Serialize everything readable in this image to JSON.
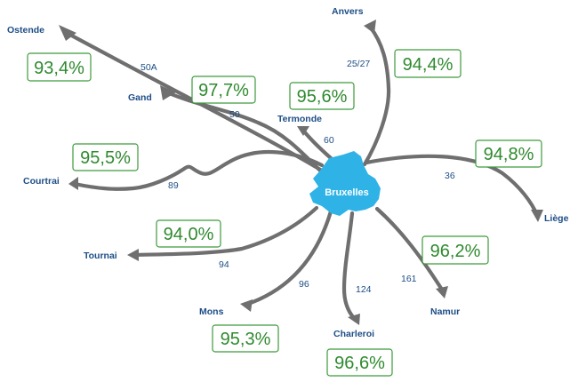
{
  "hub": {
    "name": "Bruxelles"
  },
  "cities": {
    "ostende": {
      "name": "Ostende",
      "line": "50A",
      "punctuality": "93,4%"
    },
    "gand": {
      "name": "Gand",
      "line": "50",
      "punctuality": "97,7%"
    },
    "anvers": {
      "name": "Anvers",
      "line": "25/27",
      "punctuality": "94,4%"
    },
    "termonde": {
      "name": "Termonde",
      "line": "60",
      "punctuality": "95,6%"
    },
    "courtrai": {
      "name": "Courtrai",
      "line": "89",
      "punctuality": "95,5%"
    },
    "liege": {
      "name": "Liège",
      "line": "36",
      "punctuality": "94,8%"
    },
    "tournai": {
      "name": "Tournai",
      "line": "94",
      "punctuality": "94,0%"
    },
    "namur": {
      "name": "Namur",
      "line": "161",
      "punctuality": "96,2%"
    },
    "mons": {
      "name": "Mons",
      "line": "96",
      "punctuality": "95,3%"
    },
    "charleroi": {
      "name": "Charleroi",
      "line": "124",
      "punctuality": "96,6%"
    }
  },
  "colors": {
    "route": "#6f6f6f",
    "hub": "#2fb3e7",
    "city_text": "#1d4e86",
    "percentage": "#2f8a2f"
  }
}
